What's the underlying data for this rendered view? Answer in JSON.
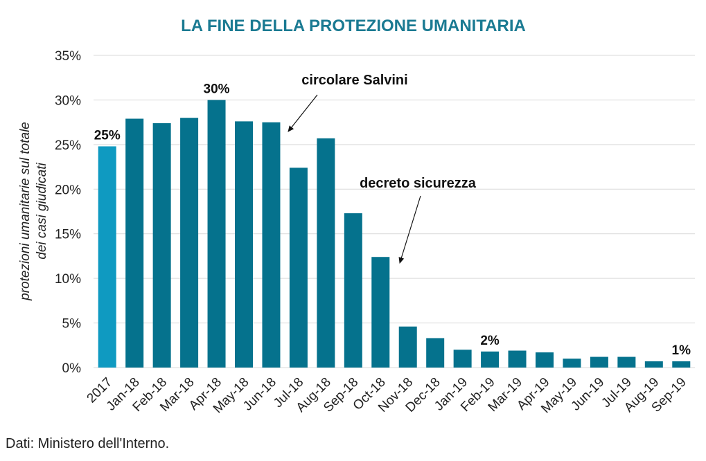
{
  "chart_data": {
    "type": "bar",
    "title": "LA FINE DELLA PROTEZIONE UMANITARIA",
    "ylabel_line1": "protezioni umanitarie sul totale",
    "ylabel_line2": "dei casi giudicati",
    "xlabel": "",
    "ylim": [
      0,
      35
    ],
    "yticks": [
      "0%",
      "5%",
      "10%",
      "15%",
      "20%",
      "25%",
      "30%",
      "35%"
    ],
    "ytick_values": [
      0,
      5,
      10,
      15,
      20,
      25,
      30,
      35
    ],
    "grid": true,
    "categories": [
      "2017",
      "Jan-18",
      "Feb-18",
      "Mar-18",
      "Apr-18",
      "May-18",
      "Jun-18",
      "Jul-18",
      "Aug-18",
      "Sep-18",
      "Oct-18",
      "Nov-18",
      "Dec-18",
      "Jan-19",
      "Feb-19",
      "Mar-19",
      "Apr-19",
      "May-19",
      "Jun-19",
      "Jul-19",
      "Aug-19",
      "Sep-19"
    ],
    "values": [
      24.8,
      27.9,
      27.4,
      28.0,
      30.0,
      27.6,
      27.5,
      22.4,
      25.7,
      17.3,
      12.4,
      4.6,
      3.3,
      2.0,
      1.8,
      1.9,
      1.7,
      1.0,
      1.2,
      1.2,
      0.7,
      0.7
    ],
    "data_labels": [
      {
        "index": 0,
        "text": "25%"
      },
      {
        "index": 4,
        "text": "30%"
      },
      {
        "index": 14,
        "text": "2%"
      },
      {
        "index": 21,
        "text": "1%"
      }
    ],
    "annotations": [
      {
        "text": "circolare Salvini",
        "target_index": 6
      },
      {
        "text": "decreto sicurezza",
        "target_index": 10
      }
    ],
    "colors": {
      "title": "#1a7a92",
      "highlight_bar": "#0f9ac1",
      "bar": "#05728d",
      "grid": "#d9d9d9"
    }
  },
  "source": "Dati: Ministero dell'Interno."
}
